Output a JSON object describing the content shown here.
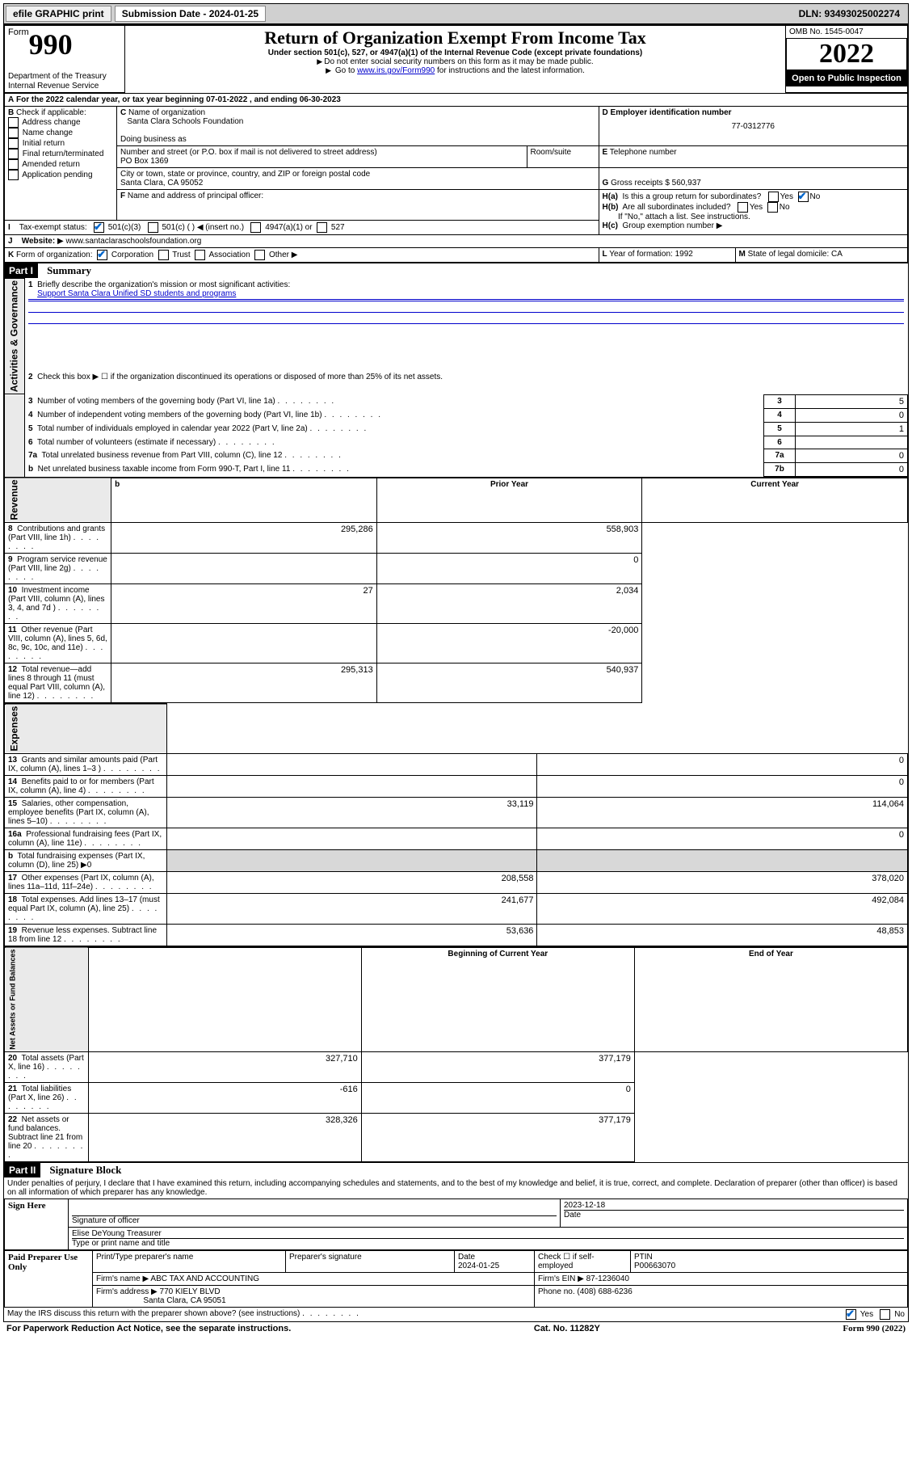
{
  "topbar": {
    "efile": "efile GRAPHIC print",
    "submission_label": "Submission Date - 2024-01-25",
    "dln": "DLN: 93493025002274"
  },
  "header": {
    "form_prefix": "Form",
    "form_no": "990",
    "dept": "Department of the Treasury",
    "irs": "Internal Revenue Service",
    "title": "Return of Organization Exempt From Income Tax",
    "subtitle": "Under section 501(c), 527, or 4947(a)(1) of the Internal Revenue Code (except private foundations)",
    "note1": "Do not enter social security numbers on this form as it may be made public.",
    "note2_pre": "Go to ",
    "note2_link": "www.irs.gov/Form990",
    "note2_post": " for instructions and the latest information.",
    "omb": "OMB No. 1545-0047",
    "year": "2022",
    "open": "Open to Public Inspection"
  },
  "A": {
    "line": "For the 2022 calendar year, or tax year beginning 07-01-2022    , and ending 06-30-2023"
  },
  "B": {
    "label": "Check if applicable:",
    "opts": [
      "Address change",
      "Name change",
      "Initial return",
      "Final return/terminated",
      "Amended return",
      "Application pending"
    ]
  },
  "C": {
    "name_label": "Name of organization",
    "name": "Santa Clara Schools Foundation",
    "dba_label": "Doing business as",
    "addr_label": "Number and street (or P.O. box if mail is not delivered to street address)",
    "room_label": "Room/suite",
    "addr": "PO Box 1369",
    "city_label": "City or town, state or province, country, and ZIP or foreign postal code",
    "city": "Santa Clara, CA  95052"
  },
  "D": {
    "label": "Employer identification number",
    "val": "77-0312776"
  },
  "E": {
    "label": "Telephone number",
    "val": ""
  },
  "G": {
    "label": "Gross receipts $",
    "val": "560,937"
  },
  "F": {
    "label": "Name and address of principal officer:",
    "val": ""
  },
  "H": {
    "a_label": "Is this a group return for subordinates?",
    "a_yes": "Yes",
    "a_no": "No",
    "b_label": "Are all subordinates included?",
    "b_note": "If \"No,\" attach a list. See instructions.",
    "c_label": "Group exemption number"
  },
  "I": {
    "label": "Tax-exempt status:",
    "opt1": "501(c)(3)",
    "opt2": "501(c) (  ) ",
    "opt2_ins": "(insert no.)",
    "opt3": "4947(a)(1) or",
    "opt4": "527"
  },
  "J": {
    "label": "Website:",
    "val": "www.santaclaraschoolsfoundation.org"
  },
  "K": {
    "label": "Form of organization:",
    "opts": [
      "Corporation",
      "Trust",
      "Association",
      "Other"
    ]
  },
  "L": {
    "label": "Year of formation:",
    "val": "1992"
  },
  "M": {
    "label": "State of legal domicile:",
    "val": "CA"
  },
  "part1": {
    "header": "Part I",
    "title": "Summary",
    "line1_label": "Briefly describe the organization's mission or most significant activities:",
    "line1_val": "Support Santa Clara Unified SD students and programs",
    "line2": "Check this box ▶ ☐  if the organization discontinued its operations or disposed of more than 25% of its net assets.",
    "prior_year": "Prior Year",
    "current_year": "Current Year",
    "begin_year": "Beginning of Current Year",
    "end_year": "End of Year"
  },
  "sections": {
    "gov": "Activities & Governance",
    "rev": "Revenue",
    "exp": "Expenses",
    "net": "Net Assets or Fund Balances"
  },
  "gov_rows": [
    {
      "n": "3",
      "t": "Number of voting members of the governing body (Part VI, line 1a)",
      "box": "3",
      "v": "5"
    },
    {
      "n": "4",
      "t": "Number of independent voting members of the governing body (Part VI, line 1b)",
      "box": "4",
      "v": "0"
    },
    {
      "n": "5",
      "t": "Total number of individuals employed in calendar year 2022 (Part V, line 2a)",
      "box": "5",
      "v": "1"
    },
    {
      "n": "6",
      "t": "Total number of volunteers (estimate if necessary)",
      "box": "6",
      "v": ""
    },
    {
      "n": "7a",
      "t": "Total unrelated business revenue from Part VIII, column (C), line 12",
      "box": "7a",
      "v": "0"
    },
    {
      "n": "b",
      "t": "Net unrelated business taxable income from Form 990-T, Part I, line 11",
      "box": "7b",
      "v": "0"
    }
  ],
  "rev_rows": [
    {
      "n": "8",
      "t": "Contributions and grants (Part VIII, line 1h)",
      "py": "295,286",
      "cy": "558,903"
    },
    {
      "n": "9",
      "t": "Program service revenue (Part VIII, line 2g)",
      "py": "",
      "cy": "0"
    },
    {
      "n": "10",
      "t": "Investment income (Part VIII, column (A), lines 3, 4, and 7d )",
      "py": "27",
      "cy": "2,034"
    },
    {
      "n": "11",
      "t": "Other revenue (Part VIII, column (A), lines 5, 6d, 8c, 9c, 10c, and 11e)",
      "py": "",
      "cy": "-20,000"
    },
    {
      "n": "12",
      "t": "Total revenue—add lines 8 through 11 (must equal Part VIII, column (A), line 12)",
      "py": "295,313",
      "cy": "540,937"
    }
  ],
  "exp_rows": [
    {
      "n": "13",
      "t": "Grants and similar amounts paid (Part IX, column (A), lines 1–3 )",
      "py": "",
      "cy": "0"
    },
    {
      "n": "14",
      "t": "Benefits paid to or for members (Part IX, column (A), line 4)",
      "py": "",
      "cy": "0"
    },
    {
      "n": "15",
      "t": "Salaries, other compensation, employee benefits (Part IX, column (A), lines 5–10)",
      "py": "33,119",
      "cy": "114,064"
    },
    {
      "n": "16a",
      "t": "Professional fundraising fees (Part IX, column (A), line 11e)",
      "py": "",
      "cy": "0"
    },
    {
      "n": "b",
      "t": "Total fundraising expenses (Part IX, column (D), line 25) ▶0",
      "py": "",
      "cy": ""
    },
    {
      "n": "17",
      "t": "Other expenses (Part IX, column (A), lines 11a–11d, 11f–24e)",
      "py": "208,558",
      "cy": "378,020"
    },
    {
      "n": "18",
      "t": "Total expenses. Add lines 13–17 (must equal Part IX, column (A), line 25)",
      "py": "241,677",
      "cy": "492,084"
    },
    {
      "n": "19",
      "t": "Revenue less expenses. Subtract line 18 from line 12",
      "py": "53,636",
      "cy": "48,853"
    }
  ],
  "net_rows": [
    {
      "n": "20",
      "t": "Total assets (Part X, line 16)",
      "py": "327,710",
      "cy": "377,179"
    },
    {
      "n": "21",
      "t": "Total liabilities (Part X, line 26)",
      "py": "-616",
      "cy": "0"
    },
    {
      "n": "22",
      "t": "Net assets or fund balances. Subtract line 21 from line 20",
      "py": "328,326",
      "cy": "377,179"
    }
  ],
  "part2": {
    "header": "Part II",
    "title": "Signature Block",
    "declaration": "Under penalties of perjury, I declare that I have examined this return, including accompanying schedules and statements, and to the best of my knowledge and belief, it is true, correct, and complete. Declaration of preparer (other than officer) is based on all information of which preparer has any knowledge."
  },
  "sign": {
    "label": "Sign Here",
    "sig_label": "Signature of officer",
    "date_label": "Date",
    "date": "2023-12-18",
    "name": "Elise DeYoung Treasurer",
    "name_label": "Type or print name and title"
  },
  "preparer": {
    "label": "Paid Preparer Use Only",
    "name_label": "Print/Type preparer's name",
    "sig_label": "Preparer's signature",
    "date_label": "Date",
    "date": "2024-01-25",
    "check_label": "Check ☐ if self-employed",
    "ptin_label": "PTIN",
    "ptin": "P00663070",
    "firm_name_label": "Firm's name   ▶",
    "firm_name": "ABC TAX AND ACCOUNTING",
    "firm_ein_label": "Firm's EIN ▶",
    "firm_ein": "87-1236040",
    "firm_addr_label": "Firm's address ▶",
    "firm_addr1": "770 KIELY BLVD",
    "firm_addr2": "Santa Clara, CA  95051",
    "phone_label": "Phone no.",
    "phone": "(408) 688-6236"
  },
  "discuss": {
    "text": "May the IRS discuss this return with the preparer shown above? (see instructions)",
    "yes": "Yes",
    "no": "No"
  },
  "footer": {
    "left": "For Paperwork Reduction Act Notice, see the separate instructions.",
    "mid": "Cat. No. 11282Y",
    "right": "Form 990 (2022)"
  }
}
